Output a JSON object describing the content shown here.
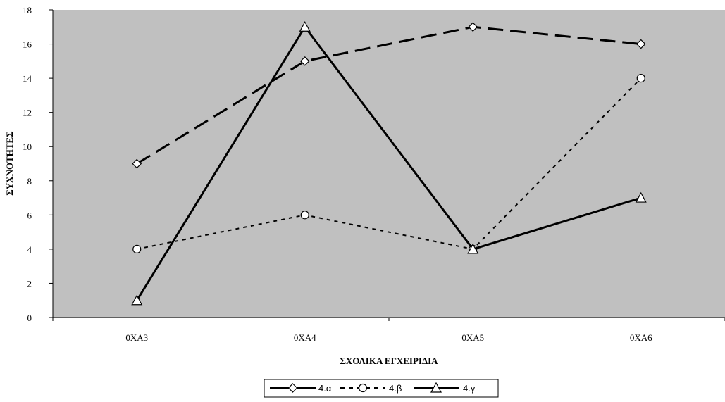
{
  "chart_data": {
    "type": "line",
    "title": "",
    "xlabel": "ΣΧΟΛΙΚΑ ΕΓΧΕΙΡΙΔΙΑ",
    "ylabel": "ΣΥΧΝΟΤΗΤΕΣ",
    "categories": [
      "0XA3",
      "0XA4",
      "0XA5",
      "0XA6"
    ],
    "ylim": [
      0,
      18
    ],
    "yticks": [
      "0",
      "2",
      "4",
      "6",
      "8",
      "10",
      "12",
      "14",
      "16",
      "18"
    ],
    "grid": false,
    "legend_position": "bottom",
    "plot_background": "#c0c0c0",
    "series": [
      {
        "name": "4.α",
        "values": [
          9,
          15,
          17,
          16
        ],
        "marker": "diamond",
        "line_style": "long-dash",
        "color": "#000000"
      },
      {
        "name": "4.β",
        "values": [
          4,
          6,
          4,
          14
        ],
        "marker": "circle",
        "line_style": "short-dash",
        "color": "#000000"
      },
      {
        "name": "4.γ",
        "values": [
          1,
          17,
          4,
          7
        ],
        "marker": "triangle",
        "line_style": "solid",
        "color": "#000000"
      }
    ]
  }
}
